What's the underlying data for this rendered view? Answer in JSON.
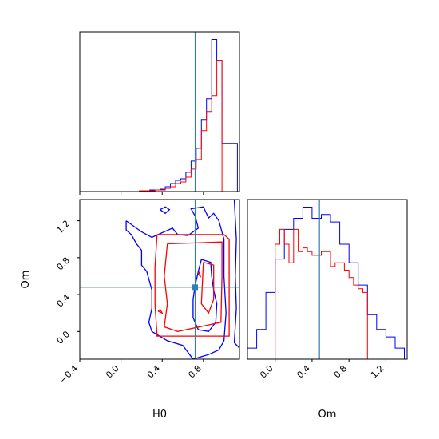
{
  "chart_data": [
    {
      "type": "histogram",
      "panel": "H0 marginal",
      "x_range": [
        -0.4,
        1.15
      ],
      "x_ticks": [
        -0.4,
        0.0,
        0.4,
        0.8
      ],
      "show_tick_labels": false,
      "truth_value": 0.72,
      "series": [
        {
          "name": "",
          "color": "#0000ff",
          "bin_edges": [
            0.18,
            0.23,
            0.28,
            0.33,
            0.38,
            0.43,
            0.48,
            0.53,
            0.58,
            0.63,
            0.68,
            0.73,
            0.78,
            0.83,
            0.88,
            0.93,
            0.98,
            1.03,
            1.08,
            1.13
          ],
          "heights": [
            0.5,
            0.5,
            1,
            1,
            1.5,
            3,
            5,
            7,
            8,
            12,
            19,
            27,
            45,
            58,
            95,
            82,
            30,
            30,
            30
          ]
        },
        {
          "name": "",
          "color": "#ff0000",
          "bin_edges": [
            0.18,
            0.23,
            0.28,
            0.33,
            0.38,
            0.43,
            0.48,
            0.53,
            0.58,
            0.63,
            0.68,
            0.73,
            0.78,
            0.83,
            0.88,
            0.93,
            0.98
          ],
          "heights": [
            0.5,
            0.5,
            0.5,
            1,
            1,
            2,
            3,
            5,
            6,
            9,
            14,
            20,
            38,
            50,
            60,
            82
          ]
        }
      ]
    },
    {
      "type": "contour",
      "panel": "H0 vs Om joint",
      "x_range": [
        -0.4,
        1.15
      ],
      "y_range": [
        -0.3,
        1.43
      ],
      "x_ticks": [
        -0.4,
        0.0,
        0.4,
        0.8
      ],
      "x_tick_labels": [
        "−0.4",
        "0.0",
        "0.4",
        "0.8"
      ],
      "y_ticks": [
        0.0,
        0.4,
        0.8,
        1.2
      ],
      "y_tick_labels": [
        "0.0",
        "0.4",
        "0.8",
        "1.2"
      ],
      "xlabel": "H0",
      "ylabel": "Om",
      "truth_point": [
        0.72,
        0.48
      ],
      "series": [
        {
          "name": "",
          "color": "#0000ff",
          "contours": [
            [
              [
                1.0,
                1.43
              ],
              [
                1.1,
                1.43
              ],
              [
                1.12,
                1.0
              ],
              [
                1.11,
                0.6
              ],
              [
                1.12,
                0.25
              ],
              [
                1.1,
                -0.12
              ],
              [
                1.15,
                -0.18
              ]
            ],
            [
              [
                0.05,
                1.2
              ],
              [
                0.2,
                1.08
              ],
              [
                0.3,
                1.02
              ],
              [
                0.5,
                1.12
              ],
              [
                0.55,
                1.05
              ],
              [
                0.65,
                1.04
              ],
              [
                0.75,
                1.12
              ],
              [
                0.72,
                1.25
              ],
              [
                0.68,
                1.33
              ],
              [
                0.8,
                1.35
              ],
              [
                0.85,
                1.23
              ],
              [
                0.9,
                1.28
              ],
              [
                0.95,
                1.2
              ],
              [
                1.0,
                1.0
              ],
              [
                1.0,
                0.6
              ],
              [
                1.02,
                0.2
              ],
              [
                1.0,
                -0.1
              ],
              [
                0.95,
                -0.2
              ],
              [
                0.85,
                -0.25
              ],
              [
                0.7,
                -0.3
              ],
              [
                0.6,
                -0.15
              ],
              [
                0.45,
                -0.1
              ],
              [
                0.3,
                0.0
              ],
              [
                0.27,
                0.1
              ],
              [
                0.3,
                0.25
              ],
              [
                0.3,
                0.45
              ],
              [
                0.25,
                0.65
              ],
              [
                0.2,
                0.72
              ],
              [
                0.2,
                0.88
              ],
              [
                0.15,
                0.95
              ],
              [
                0.1,
                1.05
              ],
              [
                0.05,
                1.1
              ],
              [
                0.05,
                1.2
              ]
            ],
            [
              [
                0.38,
                1.32
              ],
              [
                0.43,
                1.28
              ],
              [
                0.47,
                1.32
              ],
              [
                0.43,
                1.35
              ],
              [
                0.38,
                1.32
              ]
            ],
            [
              [
                0.78,
                0.78
              ],
              [
                0.87,
                0.75
              ],
              [
                0.88,
                0.6
              ],
              [
                0.9,
                0.45
              ],
              [
                0.93,
                0.3
              ],
              [
                0.92,
                0.1
              ],
              [
                0.85,
                0.0
              ],
              [
                0.75,
                0.02
              ],
              [
                0.7,
                0.15
              ],
              [
                0.7,
                0.35
              ],
              [
                0.72,
                0.5
              ],
              [
                0.75,
                0.65
              ],
              [
                0.78,
                0.78
              ]
            ]
          ]
        },
        {
          "name": "",
          "color": "#ff0000",
          "contours": [
            [
              [
                0.35,
                1.05
              ],
              [
                0.7,
                1.05
              ],
              [
                1.0,
                1.05
              ],
              [
                1.05,
                1.0
              ],
              [
                1.05,
                0.6
              ],
              [
                1.05,
                0.2
              ],
              [
                1.05,
                -0.05
              ],
              [
                0.7,
                -0.05
              ],
              [
                0.35,
                -0.05
              ],
              [
                0.33,
                0.3
              ],
              [
                0.33,
                0.7
              ],
              [
                0.35,
                1.05
              ]
            ],
            [
              [
                0.45,
                0.95
              ],
              [
                0.98,
                0.97
              ],
              [
                0.98,
                0.6
              ],
              [
                0.97,
                0.1
              ],
              [
                0.55,
                0.0
              ],
              [
                0.42,
                0.05
              ],
              [
                0.45,
                0.3
              ],
              [
                0.42,
                0.6
              ],
              [
                0.45,
                0.95
              ]
            ],
            [
              [
                0.8,
                0.75
              ],
              [
                0.9,
                0.72
              ],
              [
                0.9,
                0.35
              ],
              [
                0.85,
                0.2
              ],
              [
                0.78,
                0.3
              ],
              [
                0.8,
                0.75
              ]
            ],
            [
              [
                0.36,
                0.22
              ],
              [
                0.4,
                0.2
              ],
              [
                0.38,
                0.24
              ],
              [
                0.36,
                0.22
              ]
            ],
            [
              [
                0.75,
                0.62
              ],
              [
                0.77,
                0.6
              ],
              [
                0.76,
                0.64
              ],
              [
                0.75,
                0.62
              ]
            ]
          ]
        }
      ]
    },
    {
      "type": "histogram",
      "panel": "Om marginal",
      "x_range": [
        -0.3,
        1.43
      ],
      "x_ticks": [
        0.0,
        0.4,
        0.8,
        1.2
      ],
      "x_tick_labels": [
        "0.0",
        "0.4",
        "0.8",
        "1.2"
      ],
      "xlabel": "Om",
      "truth_value": 0.48,
      "series": [
        {
          "name": "",
          "color": "#0000ff",
          "bin_edges": [
            -0.3,
            -0.2,
            -0.1,
            0.0,
            0.1,
            0.2,
            0.3,
            0.4,
            0.5,
            0.6,
            0.7,
            0.8,
            0.9,
            1.0,
            1.1,
            1.2,
            1.3,
            1.4
          ],
          "heights": [
            3,
            8,
            18,
            27,
            35,
            38,
            41,
            38,
            39,
            37,
            31,
            26,
            20,
            12,
            8,
            6,
            3
          ]
        },
        {
          "name": "",
          "color": "#ff0000",
          "bin_edges": [
            0.0,
            0.05,
            0.1,
            0.15,
            0.2,
            0.25,
            0.3,
            0.35,
            0.4,
            0.45,
            0.5,
            0.55,
            0.6,
            0.65,
            0.7,
            0.75,
            0.8,
            0.85,
            0.9,
            0.95,
            1.0
          ],
          "heights": [
            31,
            35,
            31,
            26,
            35,
            29,
            30,
            29,
            28,
            28,
            29,
            29,
            25,
            26,
            26,
            24,
            22,
            20,
            19,
            18
          ]
        }
      ]
    }
  ]
}
